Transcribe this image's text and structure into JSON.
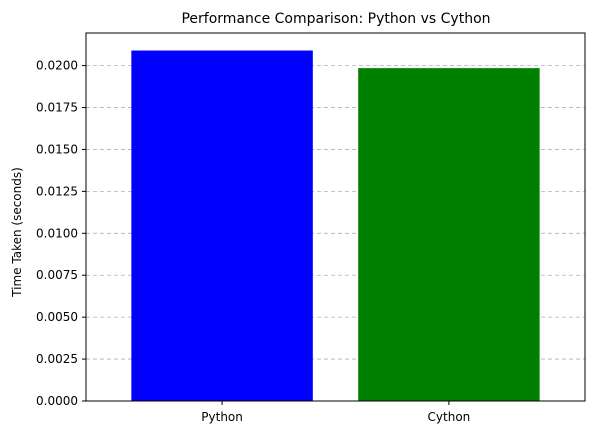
{
  "chart_data": {
    "type": "bar",
    "title": "Performance Comparison: Python vs Cython",
    "xlabel": "",
    "ylabel": "Time Taken (seconds)",
    "categories": [
      "Python",
      "Cython"
    ],
    "values": [
      0.0209,
      0.01985
    ],
    "colors": [
      "#0000ff",
      "#008000"
    ],
    "ylim": [
      0,
      0.021945
    ],
    "yticks": [
      0.0,
      0.0025,
      0.005,
      0.0075,
      0.01,
      0.0125,
      0.015,
      0.0175,
      0.02
    ],
    "ytick_labels": [
      "0.0000",
      "0.0025",
      "0.0050",
      "0.0075",
      "0.0100",
      "0.0125",
      "0.0150",
      "0.0175",
      "0.0200"
    ],
    "grid": "y-dashed"
  }
}
